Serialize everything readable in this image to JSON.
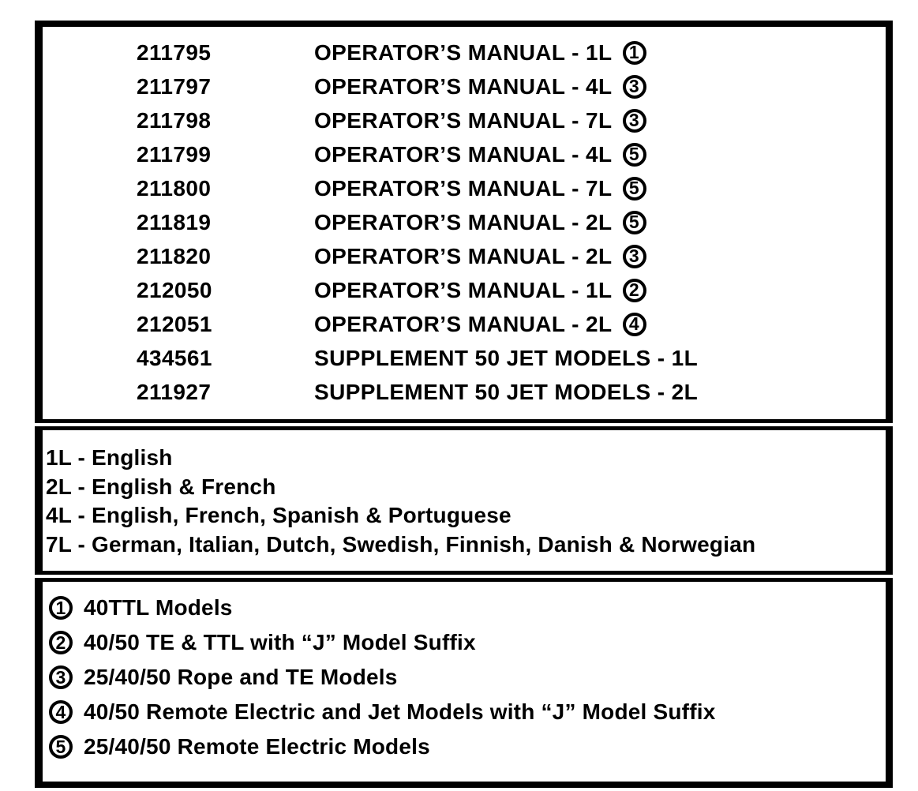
{
  "colors": {
    "ink": "#000000",
    "paper": "#ffffff"
  },
  "manual_list": {
    "rows": [
      {
        "part": "211795",
        "desc": "OPERATOR’S MANUAL - 1L",
        "note": "1"
      },
      {
        "part": "211797",
        "desc": "OPERATOR’S MANUAL - 4L",
        "note": "3"
      },
      {
        "part": "211798",
        "desc": "OPERATOR’S MANUAL - 7L",
        "note": "3"
      },
      {
        "part": "211799",
        "desc": "OPERATOR’S MANUAL - 4L",
        "note": "5"
      },
      {
        "part": "211800",
        "desc": "OPERATOR’S MANUAL - 7L",
        "note": "5"
      },
      {
        "part": "211819",
        "desc": "OPERATOR’S MANUAL - 2L",
        "note": "5"
      },
      {
        "part": "211820",
        "desc": "OPERATOR’S MANUAL - 2L",
        "note": "3"
      },
      {
        "part": "212050",
        "desc": "OPERATOR’S MANUAL - 1L",
        "note": "2"
      },
      {
        "part": "212051",
        "desc": "OPERATOR’S MANUAL - 2L",
        "note": "4"
      },
      {
        "part": "434561",
        "desc": "SUPPLEMENT 50 JET MODELS - 1L"
      },
      {
        "part": "211927",
        "desc": "SUPPLEMENT 50 JET MODELS - 2L"
      }
    ]
  },
  "language_legend": {
    "items": [
      {
        "label": "1L - English"
      },
      {
        "label": "2L - English & French"
      },
      {
        "label": "4L - English, French, Spanish & Portuguese"
      },
      {
        "label": "7L - German, Italian, Dutch, Swedish, Finnish, Danish & Norwegian"
      }
    ]
  },
  "model_legend": {
    "items": [
      {
        "note": "1",
        "label": "40TTL Models"
      },
      {
        "note": "2",
        "label": "40/50 TE & TTL with “J” Model Suffix"
      },
      {
        "note": "3",
        "label": "25/40/50 Rope and TE Models"
      },
      {
        "note": "4",
        "label": "40/50 Remote Electric and Jet Models with “J” Model Suffix"
      },
      {
        "note": "5",
        "label": "25/40/50 Remote Electric Models"
      }
    ]
  }
}
